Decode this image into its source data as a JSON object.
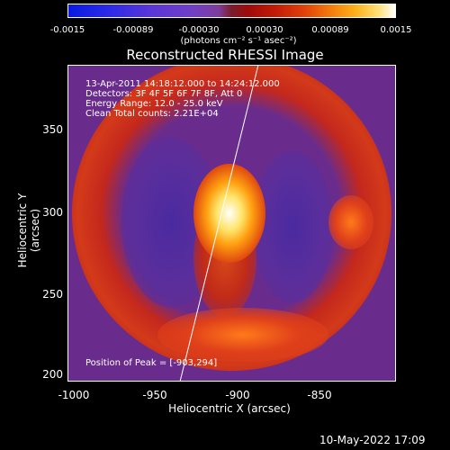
{
  "colorbar": {
    "ticks": [
      "-0.0015",
      "-0.00089",
      "-0.00030",
      "0.00030",
      "0.00089",
      "0.0015"
    ],
    "units": "(photons cm⁻² s⁻¹ asec⁻²)"
  },
  "title": "Reconstructed RHESSI Image",
  "annotations": {
    "time": "13-Apr-2011 14:18:12.000 to 14:24:12.000",
    "detectors": "Detectors: 3F 4F 5F 6F 7F 8F, Att 0",
    "energy": "Energy Range: 12.0 - 25.0 keV",
    "clean": "Clean     Total counts: 2.21E+04",
    "peak": "Position of Peak = [-903,294]"
  },
  "axes": {
    "xlabel": "Heliocentric X (arcsec)",
    "ylabel": "Heliocentric Y (arcsec)",
    "xticks": [
      "-1000",
      "-950",
      "-900",
      "-850"
    ],
    "yticks": [
      "350",
      "300",
      "250",
      "200"
    ]
  },
  "datestamp": "10-May-2022 17:09"
}
